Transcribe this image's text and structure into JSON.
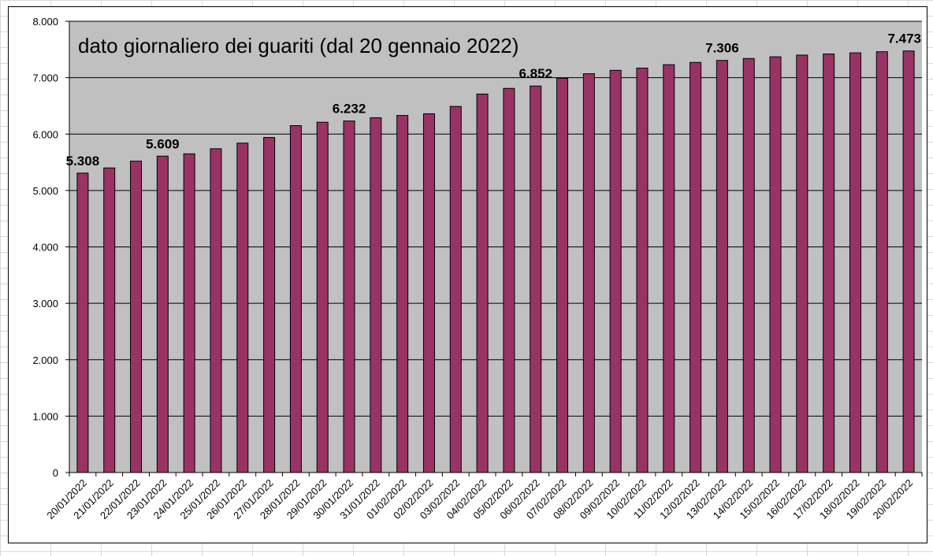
{
  "chart_data": {
    "type": "bar",
    "title": "dato giornaliero dei guariti (dal 20 gennaio 2022)",
    "xlabel": "",
    "ylabel": "",
    "ylim": [
      0,
      8000
    ],
    "yticks": [
      0,
      1000,
      2000,
      3000,
      4000,
      5000,
      6000,
      7000,
      8000
    ],
    "ytick_labels": [
      "0",
      "1.000",
      "2.000",
      "3.000",
      "4.000",
      "5.000",
      "6.000",
      "7.000",
      "8.000"
    ],
    "grid": true,
    "plot_background": "#c0c0c0",
    "bar_color": "#993366",
    "categories": [
      "20/01/2022",
      "21/01/2022",
      "22/01/2022",
      "23/01/2022",
      "24/01/2022",
      "25/01/2022",
      "26/01/2022",
      "27/01/2022",
      "28/01/2022",
      "29/01/2022",
      "30/01/2022",
      "31/01/2022",
      "01/02/2022",
      "02/02/2022",
      "03/02/2022",
      "04/02/2022",
      "05/02/2022",
      "06/02/2022",
      "07/02/2022",
      "08/02/2022",
      "09/02/2022",
      "10/02/2022",
      "11/02/2022",
      "12/02/2022",
      "13/02/2022",
      "14/02/2022",
      "15/02/2022",
      "16/02/2022",
      "17/02/2022",
      "18/02/2022",
      "19/02/2022",
      "20/02/2022"
    ],
    "values": [
      5308,
      5400,
      5520,
      5609,
      5650,
      5740,
      5840,
      5940,
      6150,
      6210,
      6232,
      6290,
      6330,
      6360,
      6490,
      6710,
      6810,
      6852,
      6990,
      7070,
      7130,
      7170,
      7230,
      7270,
      7306,
      7340,
      7370,
      7400,
      7420,
      7440,
      7460,
      7473
    ],
    "data_labels": [
      {
        "index": 0,
        "text": "5.308"
      },
      {
        "index": 3,
        "text": "5.609"
      },
      {
        "index": 10,
        "text": "6.232"
      },
      {
        "index": 17,
        "text": "6.852"
      },
      {
        "index": 24,
        "text": "7.306"
      },
      {
        "index": 31,
        "text": "7.473"
      }
    ]
  }
}
